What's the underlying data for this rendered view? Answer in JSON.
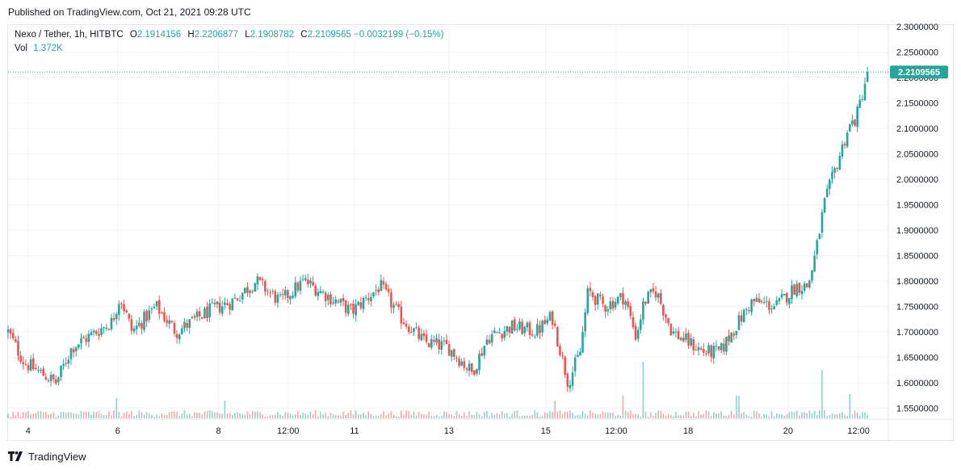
{
  "header": {
    "published": "Published on TradingView.com, Oct 21, 2021 09:28 UTC"
  },
  "legend": {
    "symbol": "Nexo / Tether, 1h, HITBTC",
    "open_label": "O",
    "open": "2.1914156",
    "high_label": "H",
    "high": "2.2206877",
    "low_label": "L",
    "low": "2.1908782",
    "close_label": "C",
    "close": "2.2109565",
    "change": "−0.0032199 (−0.15%)",
    "vol_label": "Vol",
    "vol": "1.372K"
  },
  "footer": {
    "brand": "TradingView"
  },
  "colors": {
    "up": "#26a69a",
    "down": "#ef5350",
    "grid": "#f0f3fa",
    "price_line": "#26a69a",
    "text": "#131722"
  },
  "chart_data": {
    "type": "candlestick",
    "title": "Nexo / Tether, 1h, HITBTC",
    "y_axis": {
      "ticks": [
        "2.3000000",
        "2.2500000",
        "2.2000000",
        "2.1500000",
        "2.1000000",
        "2.0500000",
        "2.0000000",
        "1.9500000",
        "1.9000000",
        "1.8500000",
        "1.8000000",
        "1.7500000",
        "1.7000000",
        "1.6500000",
        "1.6000000",
        "1.5500000"
      ],
      "range": [
        1.53,
        2.305
      ],
      "position": "right"
    },
    "x_axis": {
      "ticks": [
        "4",
        "6",
        "8",
        "12:00",
        "11",
        "13",
        "15",
        "12:00",
        "18",
        "20",
        "12:00"
      ]
    },
    "last_price": {
      "value": 2.2109565,
      "label": "2.2109565"
    },
    "grid": true,
    "anchors": [
      {
        "t": 0,
        "p": 1.7
      },
      {
        "t": 20,
        "p": 1.64
      },
      {
        "t": 60,
        "p": 1.6
      },
      {
        "t": 80,
        "p": 1.67
      },
      {
        "t": 130,
        "p": 1.72
      },
      {
        "t": 140,
        "p": 1.77
      },
      {
        "t": 155,
        "p": 1.7
      },
      {
        "t": 185,
        "p": 1.75
      },
      {
        "t": 210,
        "p": 1.7
      },
      {
        "t": 250,
        "p": 1.74
      },
      {
        "t": 280,
        "p": 1.76
      },
      {
        "t": 310,
        "p": 1.8
      },
      {
        "t": 340,
        "p": 1.76
      },
      {
        "t": 370,
        "p": 1.8
      },
      {
        "t": 400,
        "p": 1.77
      },
      {
        "t": 430,
        "p": 1.74
      },
      {
        "t": 465,
        "p": 1.79
      },
      {
        "t": 490,
        "p": 1.73
      },
      {
        "t": 520,
        "p": 1.68
      },
      {
        "t": 550,
        "p": 1.67
      },
      {
        "t": 580,
        "p": 1.62
      },
      {
        "t": 600,
        "p": 1.69
      },
      {
        "t": 630,
        "p": 1.71
      },
      {
        "t": 660,
        "p": 1.7
      },
      {
        "t": 680,
        "p": 1.73
      },
      {
        "t": 700,
        "p": 1.6
      },
      {
        "t": 715,
        "p": 1.66
      },
      {
        "t": 725,
        "p": 1.78
      },
      {
        "t": 745,
        "p": 1.75
      },
      {
        "t": 770,
        "p": 1.77
      },
      {
        "t": 785,
        "p": 1.69
      },
      {
        "t": 795,
        "p": 1.76
      },
      {
        "t": 810,
        "p": 1.78
      },
      {
        "t": 830,
        "p": 1.7
      },
      {
        "t": 850,
        "p": 1.68
      },
      {
        "t": 870,
        "p": 1.66
      },
      {
        "t": 890,
        "p": 1.66
      },
      {
        "t": 905,
        "p": 1.7
      },
      {
        "t": 930,
        "p": 1.76
      },
      {
        "t": 960,
        "p": 1.75
      },
      {
        "t": 985,
        "p": 1.79
      },
      {
        "t": 1000,
        "p": 1.79
      },
      {
        "t": 1010,
        "p": 1.86
      },
      {
        "t": 1020,
        "p": 1.95
      },
      {
        "t": 1030,
        "p": 2.0
      },
      {
        "t": 1040,
        "p": 2.05
      },
      {
        "t": 1050,
        "p": 2.1
      },
      {
        "t": 1060,
        "p": 2.12
      },
      {
        "t": 1068,
        "p": 2.17
      },
      {
        "t": 1074,
        "p": 2.21
      }
    ],
    "volume_spikes": [
      {
        "t": 795,
        "v": 70
      },
      {
        "t": 1018,
        "v": 60
      },
      {
        "t": 1052,
        "v": 30
      },
      {
        "t": 912,
        "v": 28
      },
      {
        "t": 770,
        "v": 28
      },
      {
        "t": 135,
        "v": 25
      },
      {
        "t": 270,
        "v": 22
      },
      {
        "t": 685,
        "v": 22
      }
    ]
  }
}
